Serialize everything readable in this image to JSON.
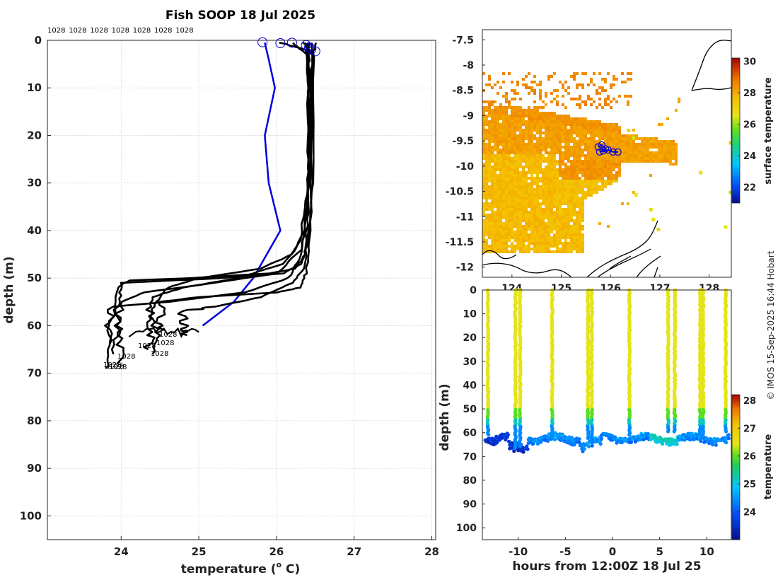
{
  "chart_data": [
    {
      "type": "line",
      "title": "Fish SOOP 18 Jul 2025",
      "xlabel": "temperature (",
      "xlabel_sup": "o",
      "xlabel_unit": " C)",
      "ylabel": "depth (m)",
      "xlim": [
        23.05,
        28.05
      ],
      "ylim": [
        0,
        105
      ],
      "xticks": [
        "24",
        "25",
        "26",
        "27",
        "28"
      ],
      "yticks": [
        "0",
        "10",
        "20",
        "30",
        "40",
        "50",
        "60",
        "70",
        "80",
        "90",
        "100"
      ],
      "pressure_labels_top": [
        "1028",
        "1028",
        "1028",
        "1028",
        "1028",
        "1028",
        "1028"
      ],
      "pressure_labels_bottom": [
        "1028",
        "1028",
        "1028",
        "1028",
        "1028",
        "1028",
        "1028",
        "1028"
      ],
      "series": [
        {
          "name": "mean profile",
          "color": "#0000dd",
          "points": [
            [
              25.85,
              0.5
            ],
            [
              25.9,
              4
            ],
            [
              25.98,
              10
            ],
            [
              25.85,
              20
            ],
            [
              25.9,
              30
            ],
            [
              26.05,
              40
            ],
            [
              25.7,
              50
            ],
            [
              25.45,
              55
            ],
            [
              25.05,
              60
            ]
          ]
        },
        {
          "name": "profile 1",
          "color": "#000000",
          "points": [
            [
              26.05,
              0.5
            ],
            [
              26.38,
              2
            ],
            [
              26.4,
              10
            ],
            [
              26.42,
              30
            ],
            [
              26.35,
              40
            ],
            [
              26.2,
              45
            ],
            [
              25.8,
              48
            ],
            [
              25.0,
              50
            ],
            [
              24.6,
              52
            ],
            [
              24.45,
              55
            ],
            [
              24.4,
              58
            ],
            [
              24.45,
              62
            ],
            [
              24.4,
              66
            ]
          ]
        },
        {
          "name": "profile 2",
          "color": "#000000",
          "points": [
            [
              26.2,
              0.5
            ],
            [
              26.4,
              3
            ],
            [
              26.42,
              15
            ],
            [
              26.4,
              32
            ],
            [
              26.3,
              42
            ],
            [
              26.1,
              47
            ],
            [
              25.5,
              50
            ],
            [
              24.8,
              52
            ],
            [
              24.4,
              54
            ],
            [
              24.35,
              58
            ],
            [
              24.4,
              62
            ],
            [
              24.35,
              65
            ]
          ]
        },
        {
          "name": "profile 3",
          "color": "#000000",
          "points": [
            [
              26.35,
              0.5
            ],
            [
              26.45,
              3
            ],
            [
              26.45,
              20
            ],
            [
              26.4,
              35
            ],
            [
              26.32,
              44
            ],
            [
              26.0,
              49
            ],
            [
              25.2,
              51
            ],
            [
              24.3,
              53
            ],
            [
              24.0,
              55
            ],
            [
              23.98,
              60
            ],
            [
              24.0,
              64
            ],
            [
              23.95,
              68
            ]
          ]
        },
        {
          "name": "profile 4",
          "color": "#000000",
          "points": [
            [
              26.4,
              0.5
            ],
            [
              26.42,
              5
            ],
            [
              26.44,
              25
            ],
            [
              26.38,
              38
            ],
            [
              26.3,
              46
            ],
            [
              26.15,
              50
            ],
            [
              25.6,
              53
            ],
            [
              24.6,
              55
            ],
            [
              23.9,
              56
            ],
            [
              23.8,
              60
            ],
            [
              23.85,
              65
            ],
            [
              23.8,
              69
            ]
          ]
        },
        {
          "name": "profile 5",
          "color": "#000000",
          "points": [
            [
              26.45,
              0.5
            ],
            [
              26.45,
              6
            ],
            [
              26.46,
              28
            ],
            [
              26.42,
              40
            ],
            [
              26.35,
              48
            ],
            [
              26.2,
              51
            ],
            [
              25.8,
              54
            ],
            [
              25.2,
              56
            ],
            [
              24.8,
              57
            ],
            [
              24.8,
              60
            ],
            [
              24.85,
              62
            ]
          ]
        },
        {
          "name": "profile 6",
          "color": "#000000",
          "points": [
            [
              26.5,
              0.5
            ],
            [
              26.47,
              4
            ],
            [
              26.47,
              30
            ],
            [
              26.43,
              42
            ],
            [
              26.38,
              49
            ],
            [
              26.3,
              52
            ],
            [
              26.0,
              53
            ],
            [
              25.0,
              54
            ],
            [
              24.5,
              55
            ],
            [
              24.5,
              59
            ],
            [
              24.55,
              61
            ]
          ]
        },
        {
          "name": "profile 7",
          "color": "#000000",
          "points": [
            [
              26.42,
              0.5
            ],
            [
              26.43,
              8
            ],
            [
              26.44,
              33
            ],
            [
              26.4,
              43
            ],
            [
              26.32,
              47
            ],
            [
              26.1,
              49
            ],
            [
              25.3,
              50
            ],
            [
              24.0,
              51
            ],
            [
              23.98,
              55
            ],
            [
              23.95,
              60
            ],
            [
              23.9,
              66
            ]
          ]
        },
        {
          "name": "profile 8",
          "color": "#000000",
          "points": [
            [
              26.38,
              0.5
            ],
            [
              26.4,
              10
            ],
            [
              26.41,
              36
            ],
            [
              26.36,
              45
            ],
            [
              26.25,
              48
            ],
            [
              25.9,
              49
            ],
            [
              24.9,
              50
            ],
            [
              24.1,
              50.5
            ],
            [
              23.95,
              52
            ],
            [
              23.9,
              58
            ],
            [
              23.85,
              64
            ]
          ]
        }
      ]
    },
    {
      "type": "heatmap",
      "name": "surface temperature map",
      "ylim": [
        -12.2,
        -7.3
      ],
      "xlim": [
        123.4,
        128.45
      ],
      "yticks": [
        "-7.5",
        "-8",
        "-8.5",
        "-9",
        "-9.5",
        "-10",
        "-10.5",
        "-11",
        "-11.5",
        "-12"
      ],
      "xticks": [
        "124",
        "125",
        "126",
        "127",
        "128"
      ],
      "colorbar_label": "surface temperature",
      "colorbar_ticks": [
        "22",
        "24",
        "26",
        "28",
        "30"
      ],
      "colorbar_range": [
        21,
        30.2
      ],
      "track_points": [
        [
          125.75,
          -9.62
        ],
        [
          125.82,
          -9.58
        ],
        [
          125.9,
          -9.66
        ],
        [
          125.78,
          -9.72
        ],
        [
          125.85,
          -9.7
        ],
        [
          125.95,
          -9.68
        ],
        [
          126.05,
          -9.72
        ],
        [
          126.15,
          -9.72
        ]
      ]
    },
    {
      "type": "scatter",
      "name": "depth-time section",
      "xlabel": "hours from 12:00Z 18 Jul 25",
      "ylabel": "depth (m)",
      "xlim": [
        -13.8,
        12.6
      ],
      "ylim": [
        0,
        105
      ],
      "xticks": [
        "-10",
        "-5",
        "0",
        "5",
        "10"
      ],
      "yticks": [
        "0",
        "10",
        "20",
        "30",
        "40",
        "50",
        "60",
        "70",
        "80",
        "90",
        "100"
      ],
      "colorbar_label": "temperature",
      "colorbar_ticks": [
        "24",
        "25",
        "26",
        "27",
        "28"
      ],
      "colorbar_range": [
        23.0,
        28.2
      ],
      "profile_hours": [
        -13.2,
        -10.3,
        -9.8,
        -6.4,
        -2.6,
        -2.2,
        1.8,
        5.9,
        6.6,
        9.3,
        9.6,
        12.0
      ],
      "profile_bottoms": [
        61,
        67,
        66,
        62,
        63,
        63,
        61,
        60,
        60,
        61,
        61,
        60
      ]
    }
  ],
  "credit": "© IMOS 15-Sep-2025 16:44 Hobart"
}
